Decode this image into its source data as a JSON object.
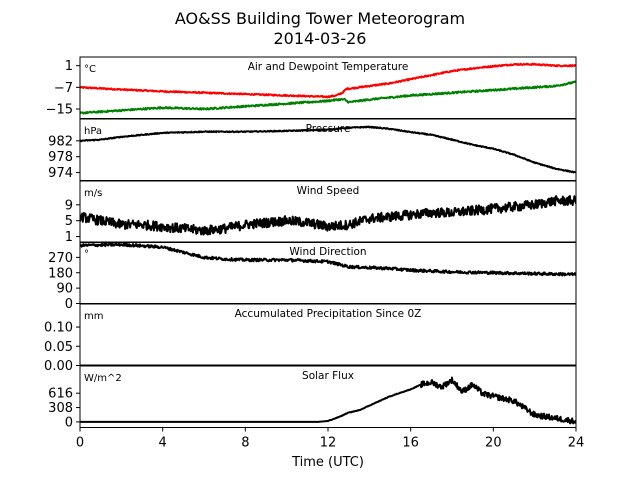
{
  "figure": {
    "title": "AO&SS Building Tower Meteorogram",
    "subtitle": "2014-03-26",
    "xlabel": "Time (UTC)"
  },
  "chart_data": [
    {
      "type": "line",
      "title": "Air and Dewpoint Temperature",
      "unit": "°C",
      "yticks": [
        1,
        -7,
        -15
      ],
      "ytick_labels": [
        "1",
        "−7",
        "−15"
      ],
      "ylim": [
        -18.5,
        4.2
      ],
      "xlim": [
        0,
        24
      ],
      "xticks": [
        0,
        4,
        8,
        12,
        16,
        20,
        24
      ],
      "series": [
        {
          "color": "#ff0000",
          "noise": 0.25,
          "x": [
            0,
            2,
            4,
            6,
            8,
            10,
            12,
            12.4,
            12.7,
            12.9,
            13,
            14,
            15,
            16,
            17,
            18,
            19,
            20,
            21,
            22,
            23,
            24
          ],
          "y": [
            -7,
            -7.8,
            -8.5,
            -9,
            -9.5,
            -10,
            -10.5,
            -10,
            -9,
            -7.5,
            -7.5,
            -6.5,
            -5.5,
            -4,
            -2.5,
            -1,
            0,
            0.8,
            1.5,
            1.5,
            1,
            1
          ]
        },
        {
          "color": "#008000",
          "noise": 0.3,
          "x": [
            0,
            2,
            4,
            6,
            8,
            10,
            12,
            12.5,
            12.8,
            13,
            14,
            16,
            18,
            20,
            22,
            23,
            24
          ],
          "y": [
            -16.5,
            -15.5,
            -14.5,
            -15,
            -14,
            -13,
            -12,
            -11.5,
            -11.5,
            -12.5,
            -11.5,
            -10,
            -9,
            -8,
            -7,
            -6.5,
            -5
          ]
        }
      ]
    },
    {
      "type": "line",
      "title": "Pressure",
      "unit": "hPa",
      "yticks": [
        982,
        978,
        974
      ],
      "ytick_labels": [
        "982",
        "978",
        "974"
      ],
      "ylim": [
        972,
        987.5
      ],
      "xlim": [
        0,
        24
      ],
      "series": [
        {
          "color": "#000000",
          "noise": 0.12,
          "x": [
            0,
            1,
            2,
            4,
            6,
            8,
            10,
            12,
            13,
            14,
            15,
            16,
            17,
            18,
            19,
            20,
            21,
            22,
            23,
            24
          ],
          "y": [
            982,
            982.3,
            983,
            984,
            984.3,
            984.3,
            984.5,
            984.8,
            985.3,
            985.5,
            985,
            984.2,
            983.5,
            982.3,
            981,
            980,
            978.5,
            976.5,
            975,
            974
          ]
        }
      ]
    },
    {
      "type": "line",
      "title": "Wind Speed",
      "unit": "m/s",
      "yticks": [
        9,
        5,
        1
      ],
      "ytick_labels": [
        "9",
        "5",
        "1"
      ],
      "ylim": [
        -0.5,
        15
      ],
      "xlim": [
        0,
        24
      ],
      "series": [
        {
          "color": "#000000",
          "noise": 1.2,
          "x": [
            0,
            1,
            2,
            3,
            4,
            5,
            6,
            7,
            8,
            9,
            10,
            11,
            12,
            13,
            14,
            15,
            16,
            17,
            18,
            19,
            20,
            21,
            22,
            23,
            24
          ],
          "y": [
            6,
            5,
            4,
            4,
            3.5,
            3,
            2.5,
            3,
            4,
            4.5,
            5,
            4.5,
            3.5,
            4,
            5.5,
            6,
            6.5,
            7,
            7,
            7.5,
            8,
            8.5,
            9,
            10,
            10
          ]
        }
      ]
    },
    {
      "type": "line",
      "title": "Wind Direction",
      "unit": "°",
      "yticks": [
        270,
        180,
        90,
        0
      ],
      "ytick_labels": [
        "270",
        "180",
        "90",
        "0"
      ],
      "ylim": [
        0,
        360
      ],
      "xlim": [
        0,
        24
      ],
      "series": [
        {
          "color": "#000000",
          "noise": 8,
          "x": [
            0,
            2,
            4,
            5,
            6,
            7,
            8,
            10,
            12,
            13,
            14,
            15,
            16,
            18,
            20,
            22,
            24
          ],
          "y": [
            340,
            345,
            330,
            300,
            270,
            260,
            255,
            255,
            245,
            215,
            210,
            205,
            195,
            185,
            180,
            175,
            170
          ]
        }
      ]
    },
    {
      "type": "line",
      "title": "Accumulated Precipitation Since 0Z",
      "unit": "mm",
      "yticks": [
        0.1,
        0.05,
        0.0
      ],
      "ytick_labels": [
        "0.10",
        "0.05",
        "0.00"
      ],
      "ylim": [
        0,
        0.16
      ],
      "xlim": [
        0,
        24
      ],
      "series": [
        {
          "color": "#000000",
          "noise": 0,
          "x": [
            0,
            24
          ],
          "y": [
            0,
            0
          ]
        }
      ]
    },
    {
      "type": "line",
      "title": "Solar Flux",
      "unit": "W/m^2",
      "yticks": [
        616,
        308,
        0
      ],
      "ytick_labels": [
        "616",
        "308",
        "0"
      ],
      "ylim": [
        -120,
        1200
      ],
      "xlim": [
        0,
        24
      ],
      "xticks": [
        0,
        4,
        8,
        12,
        16,
        20,
        24
      ],
      "series": [
        {
          "color": "#000000",
          "noise": 60,
          "noise_start": 16.5,
          "x": [
            0,
            11.5,
            12,
            12.5,
            13,
            13.5,
            14,
            15,
            16,
            16.5,
            17,
            17.5,
            18,
            18.5,
            19,
            19.5,
            20,
            20.5,
            21,
            21.5,
            22,
            23,
            24
          ],
          "y": [
            0,
            0,
            20,
            100,
            200,
            250,
            350,
            550,
            700,
            800,
            850,
            750,
            900,
            650,
            800,
            600,
            550,
            500,
            450,
            300,
            150,
            80,
            10
          ]
        }
      ]
    }
  ]
}
